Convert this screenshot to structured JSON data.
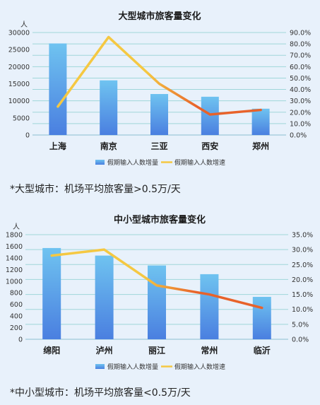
{
  "chart_data": [
    {
      "type": "bar+line",
      "title": "大型城市旅客量变化",
      "y_unit": "人",
      "categories": [
        "上海",
        "南京",
        "三亚",
        "西安",
        "郑州"
      ],
      "series": [
        {
          "name": "假期输入人数增量",
          "kind": "bar",
          "axis": "left",
          "values": [
            26800,
            16000,
            12000,
            11200,
            7700
          ]
        },
        {
          "name": "假期输入人数增速",
          "kind": "line",
          "axis": "right",
          "values": [
            0.25,
            0.86,
            0.45,
            0.18,
            0.22
          ]
        }
      ],
      "left_axis": {
        "ticks": [
          "0",
          "5000",
          "10000",
          "15000",
          "20000",
          "25000",
          "30000"
        ],
        "ylim": [
          0,
          30000
        ]
      },
      "right_axis": {
        "ticks": [
          "0.0%",
          "10.0%",
          "20.0%",
          "30.0%",
          "40.0%",
          "50.0%",
          "60.0%",
          "70.0%",
          "80.0%",
          "90.0%"
        ],
        "ylim": [
          0,
          0.9
        ]
      },
      "grid": true,
      "legend": "bottom",
      "colors": {
        "bar_top": "#6fc3f0",
        "bar_bottom": "#4a7fe0",
        "line_start": "#f5c842",
        "line_end": "#e8622a"
      }
    },
    {
      "type": "bar+line",
      "title": "中小型城市旅客量变化",
      "y_unit": "人",
      "categories": [
        "绵阳",
        "泸州",
        "丽江",
        "常州",
        "临沂"
      ],
      "series": [
        {
          "name": "假期输入人数增量",
          "kind": "bar",
          "axis": "left",
          "values": [
            1570,
            1440,
            1270,
            1120,
            730
          ]
        },
        {
          "name": "假期输入人数增速",
          "kind": "line",
          "axis": "right",
          "values": [
            0.28,
            0.3,
            0.18,
            0.15,
            0.105
          ]
        }
      ],
      "left_axis": {
        "ticks": [
          "0",
          "200",
          "400",
          "600",
          "800",
          "1000",
          "1200",
          "1400",
          "1600",
          "1800"
        ],
        "ylim": [
          0,
          1800
        ]
      },
      "right_axis": {
        "ticks": [
          "0.0%",
          "5.0%",
          "10.0%",
          "15.0%",
          "20.0%",
          "25.0%",
          "30.0%",
          "35.0%"
        ],
        "ylim": [
          0,
          0.35
        ]
      },
      "grid": true,
      "legend": "bottom",
      "colors": {
        "bar_top": "#6fc3f0",
        "bar_bottom": "#4a7fe0",
        "line_start": "#f5c842",
        "line_end": "#e8622a"
      }
    }
  ],
  "notes": [
    "*大型城市：机场平均旅客量>0.5万/天",
    "*中小型城市：机场平均旅客量<0.5万/天"
  ]
}
